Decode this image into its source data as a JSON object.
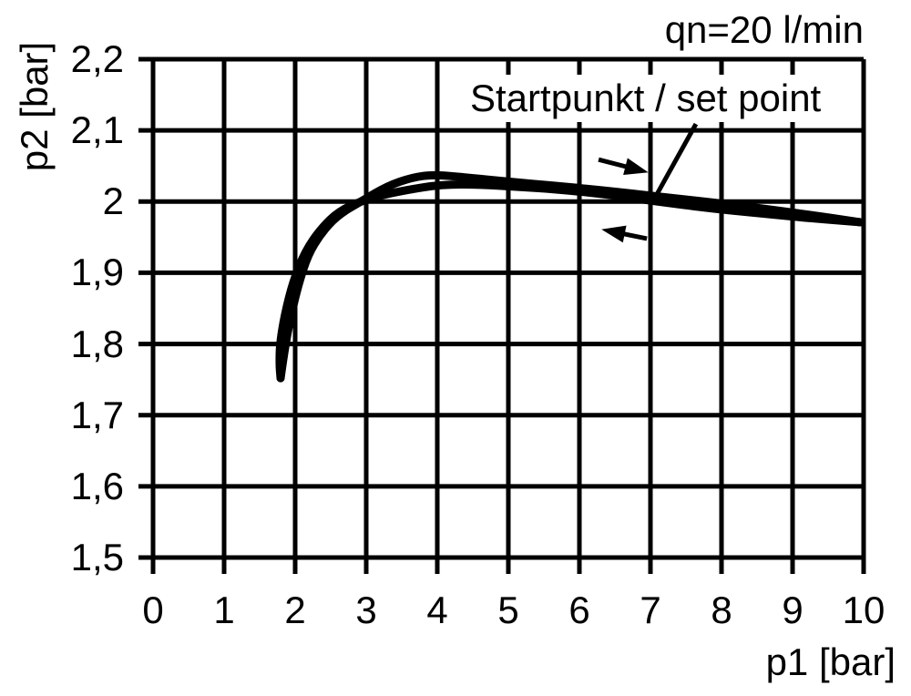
{
  "chart_data": {
    "type": "line",
    "title": "",
    "xlabel": "p1 [bar]",
    "ylabel": "p2 [bar]",
    "xlim": [
      0,
      10
    ],
    "ylim": [
      1.5,
      2.2
    ],
    "grid": true,
    "x_ticks": [
      0,
      1,
      2,
      3,
      4,
      5,
      6,
      7,
      8,
      9,
      10
    ],
    "x_tick_labels": [
      "0",
      "1",
      "2",
      "3",
      "4",
      "5",
      "6",
      "7",
      "8",
      "9",
      "10"
    ],
    "y_ticks": [
      1.5,
      1.6,
      1.7,
      1.8,
      1.9,
      2.0,
      2.1,
      2.2
    ],
    "y_tick_labels": [
      "1,5",
      "1,6",
      "1,7",
      "1,8",
      "1,9",
      "2",
      "2,1",
      "2,2"
    ],
    "annotations": {
      "flow_rate": "qn=20 l/min",
      "set_point": "Startpunkt / set point"
    },
    "leader_line": {
      "from": [
        7.64,
        2.109
      ],
      "to": [
        7.1,
        2.012
      ]
    },
    "arrows": [
      {
        "name": "forward-direction-arrow",
        "from": [
          6.27,
          2.059
        ],
        "to": [
          6.97,
          2.041
        ]
      },
      {
        "name": "return-direction-arrow",
        "from": [
          6.95,
          1.948
        ],
        "to": [
          6.31,
          1.961
        ]
      }
    ],
    "series": [
      {
        "name": "forward (increasing p1)",
        "points": [
          [
            1.795,
            1.752
          ],
          [
            1.85,
            1.792
          ],
          [
            1.94,
            1.84
          ],
          [
            2.05,
            1.885
          ],
          [
            2.18,
            1.925
          ],
          [
            2.36,
            1.955
          ],
          [
            2.6,
            1.981
          ],
          [
            2.94,
            2.001
          ],
          [
            3.3,
            2.022
          ],
          [
            3.65,
            2.034
          ],
          [
            3.95,
            2.038
          ],
          [
            4.4,
            2.034
          ],
          [
            5.0,
            2.028
          ],
          [
            5.7,
            2.022
          ],
          [
            6.5,
            2.014
          ],
          [
            7.4,
            2.004
          ],
          [
            8.3,
            1.994
          ],
          [
            9.2,
            1.982
          ],
          [
            9.95,
            1.971
          ]
        ]
      },
      {
        "name": "return (decreasing p1)",
        "points": [
          [
            9.95,
            1.971
          ],
          [
            9.3,
            1.976
          ],
          [
            8.5,
            1.984
          ],
          [
            7.8,
            1.991
          ],
          [
            7.1,
            2.0
          ],
          [
            6.4,
            2.01
          ],
          [
            5.7,
            2.017
          ],
          [
            5.1,
            2.021
          ],
          [
            4.6,
            2.024
          ],
          [
            4.05,
            2.024
          ],
          [
            3.55,
            2.016
          ],
          [
            3.18,
            2.008
          ],
          [
            2.94,
            2.001
          ],
          [
            2.62,
            1.987
          ],
          [
            2.36,
            1.962
          ],
          [
            2.14,
            1.93
          ],
          [
            1.97,
            1.888
          ],
          [
            1.85,
            1.84
          ],
          [
            1.785,
            1.8
          ],
          [
            1.78,
            1.77
          ],
          [
            1.795,
            1.752
          ]
        ]
      }
    ],
    "colors": {
      "line": "#000000",
      "grid": "#000000",
      "background": "#ffffff"
    }
  }
}
